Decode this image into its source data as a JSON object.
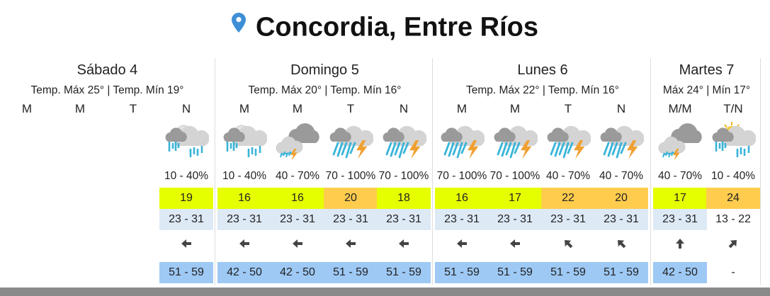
{
  "location": {
    "icon": "map-pin-icon",
    "title": "Concordia, Entre Ríos",
    "pin_color": "#3d8fd6"
  },
  "colors": {
    "yellow": "#e6ff00",
    "orange": "#ffcc4d",
    "humidity_bg": "#dde9f5",
    "wind_bg": "#9ec9f5"
  },
  "days": [
    {
      "name": "Sábado 4",
      "temps": "Temp. Máx 25° | Temp. Mín 19°",
      "periods": [
        {
          "label": "M"
        },
        {
          "label": "M"
        },
        {
          "label": "T"
        },
        {
          "label": "N",
          "icon": "rain-night-cloud-icon",
          "prob": "10 - 40%",
          "temp": "19",
          "temp_color": "yellow",
          "hum": "23 - 31",
          "dir": "W",
          "arrow": "arrow-left-icon",
          "wind": "51 - 59"
        }
      ]
    },
    {
      "name": "Domingo 5",
      "temps": "Temp. Máx 20° | Temp. Mín 16°",
      "periods": [
        {
          "label": "M",
          "icon": "rain-night-cloud-icon",
          "prob": "10 - 40%",
          "temp": "16",
          "temp_color": "yellow",
          "hum": "23 - 31",
          "arrow": "arrow-left-icon",
          "wind": "42 - 50"
        },
        {
          "label": "M",
          "icon": "storm-dark-cloud-icon",
          "prob": "40 - 70%",
          "temp": "16",
          "temp_color": "yellow",
          "hum": "23 - 31",
          "arrow": "arrow-left-icon",
          "wind": "42 - 50"
        },
        {
          "label": "T",
          "icon": "thunderstorm-heavy-rain-icon",
          "prob": "70 - 100%",
          "temp": "20",
          "temp_color": "orange",
          "hum": "23 - 31",
          "arrow": "arrow-left-icon",
          "wind": "51 - 59"
        },
        {
          "label": "N",
          "icon": "thunderstorm-heavy-rain-icon",
          "prob": "70 - 100%",
          "temp": "18",
          "temp_color": "yellow",
          "hum": "23 - 31",
          "arrow": "arrow-left-icon",
          "wind": "51 - 59"
        }
      ]
    },
    {
      "name": "Lunes 6",
      "temps": "Temp. Máx 22° | Temp. Mín 16°",
      "periods": [
        {
          "label": "M",
          "icon": "thunderstorm-heavy-rain-icon",
          "prob": "70 - 100%",
          "temp": "16",
          "temp_color": "yellow",
          "hum": "23 - 31",
          "arrow": "arrow-left-icon",
          "wind": "51 - 59"
        },
        {
          "label": "M",
          "icon": "thunderstorm-heavy-rain-icon",
          "prob": "70 - 100%",
          "temp": "17",
          "temp_color": "yellow",
          "hum": "23 - 31",
          "arrow": "arrow-left-icon",
          "wind": "51 - 59"
        },
        {
          "label": "T",
          "icon": "thunderstorm-heavy-rain-icon",
          "prob": "40 - 70%",
          "temp": "22",
          "temp_color": "orange",
          "hum": "23 - 31",
          "arrow": "arrow-up-left-icon",
          "wind": "51 - 59"
        },
        {
          "label": "N",
          "icon": "thunderstorm-heavy-rain-icon",
          "prob": "40 - 70%",
          "temp": "20",
          "temp_color": "orange",
          "hum": "23 - 31",
          "arrow": "arrow-up-left-icon",
          "wind": "51 - 59"
        }
      ]
    },
    {
      "name": "Martes 7",
      "temps": "Máx 24° | Mín 17°",
      "periods": [
        {
          "label": "M/M",
          "icon": "storm-dark-cloud-icon",
          "prob": "40 - 70%",
          "temp": "17",
          "temp_color": "yellow",
          "hum": "23 - 31",
          "arrow": "arrow-up-icon",
          "wind": "42 - 50"
        },
        {
          "label": "T/N",
          "icon": "rain-sun-cloud-icon",
          "prob": "10 - 40%",
          "temp": "24",
          "temp_color": "orange",
          "hum": "13 - 22",
          "hum_plain": true,
          "arrow": "arrow-up-right-icon",
          "wind": "-",
          "wind_plain": true
        }
      ]
    }
  ]
}
